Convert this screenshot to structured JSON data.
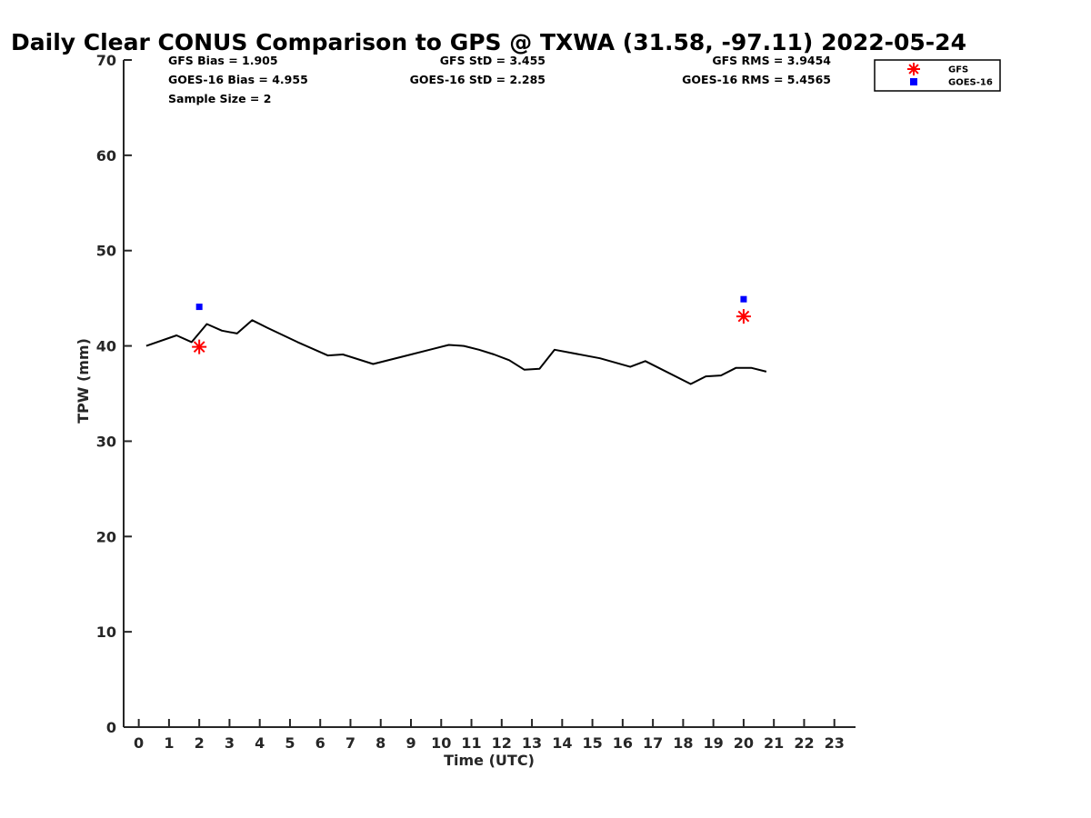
{
  "chart_data": {
    "type": "line",
    "title": "Daily Clear CONUS Comparison to GPS @ TXWA (31.58, -97.11) 2022-05-24",
    "xlabel": "Time (UTC)",
    "ylabel": "TPW (mm)",
    "xlim": [
      -0.5,
      23.7
    ],
    "ylim": [
      0,
      70
    ],
    "x_ticks": [
      0,
      1,
      2,
      3,
      4,
      5,
      6,
      7,
      8,
      9,
      10,
      11,
      12,
      13,
      14,
      15,
      16,
      17,
      18,
      19,
      20,
      21,
      22,
      23
    ],
    "y_ticks": [
      0,
      10,
      20,
      30,
      40,
      50,
      60,
      70
    ],
    "grid": false,
    "legend_position": "top-right",
    "stats": {
      "gfs_bias": "GFS Bias = 1.905",
      "goes_bias": "GOES-16 Bias = 4.955",
      "sample_size": "Sample Size = 2",
      "gfs_std": "GFS StD = 3.455",
      "goes_std": "GOES-16 StD = 2.285",
      "gfs_rms": "GFS RMS = 3.9454",
      "goes_rms": "GOES-16 RMS = 5.4565"
    },
    "series": [
      {
        "name": "",
        "style": "line",
        "color": "#000000",
        "points": [
          [
            0.25,
            40.0
          ],
          [
            1.25,
            41.1
          ],
          [
            1.75,
            40.4
          ],
          [
            2.25,
            42.3
          ],
          [
            2.75,
            41.6
          ],
          [
            3.25,
            41.3
          ],
          [
            3.75,
            42.7
          ],
          [
            4.25,
            41.9
          ],
          [
            5.25,
            40.4
          ],
          [
            6.25,
            39.0
          ],
          [
            6.75,
            39.1
          ],
          [
            7.75,
            38.1
          ],
          [
            8.75,
            38.9
          ],
          [
            9.75,
            39.7
          ],
          [
            10.25,
            40.1
          ],
          [
            10.75,
            40.0
          ],
          [
            11.25,
            39.6
          ],
          [
            11.75,
            39.1
          ],
          [
            12.25,
            38.5
          ],
          [
            12.75,
            37.5
          ],
          [
            13.25,
            37.6
          ],
          [
            13.75,
            39.6
          ],
          [
            15.25,
            38.7
          ],
          [
            16.25,
            37.8
          ],
          [
            16.75,
            38.4
          ],
          [
            18.25,
            36.0
          ],
          [
            18.75,
            36.8
          ],
          [
            19.25,
            36.9
          ],
          [
            19.75,
            37.7
          ],
          [
            20.25,
            37.7
          ],
          [
            20.75,
            37.3
          ]
        ]
      },
      {
        "name": "GFS",
        "style": "asterisk",
        "color": "#ff0000",
        "points": [
          [
            2.0,
            39.9
          ],
          [
            20.0,
            43.1
          ]
        ]
      },
      {
        "name": "GOES-16",
        "style": "square",
        "color": "#0000ff",
        "points": [
          [
            2.0,
            44.1
          ],
          [
            20.0,
            44.9
          ]
        ]
      }
    ]
  }
}
